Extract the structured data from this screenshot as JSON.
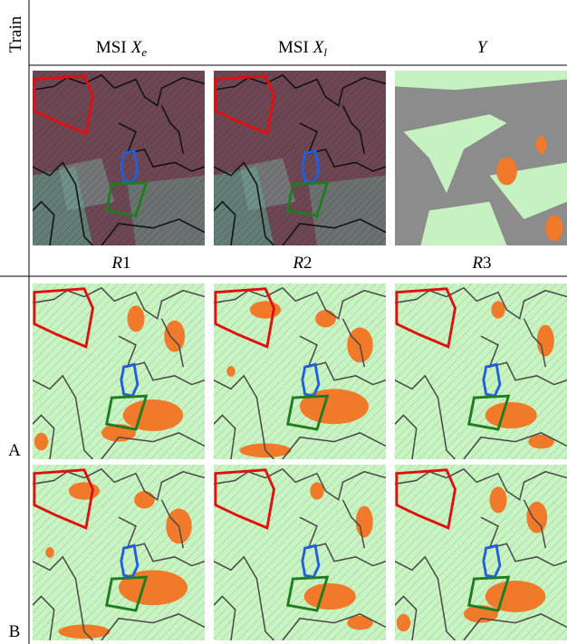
{
  "header": {
    "row_label": "Train",
    "columns": [
      {
        "prefix": "MSI",
        "var": "X",
        "sub": "e"
      },
      {
        "prefix": "MSI",
        "var": "X",
        "sub": "l"
      },
      {
        "var": "Y"
      }
    ]
  },
  "results": {
    "columns": [
      {
        "var": "R",
        "index": "1"
      },
      {
        "var": "R",
        "index": "2"
      },
      {
        "var": "R",
        "index": "3"
      }
    ],
    "rows": [
      "A",
      "B"
    ]
  }
}
